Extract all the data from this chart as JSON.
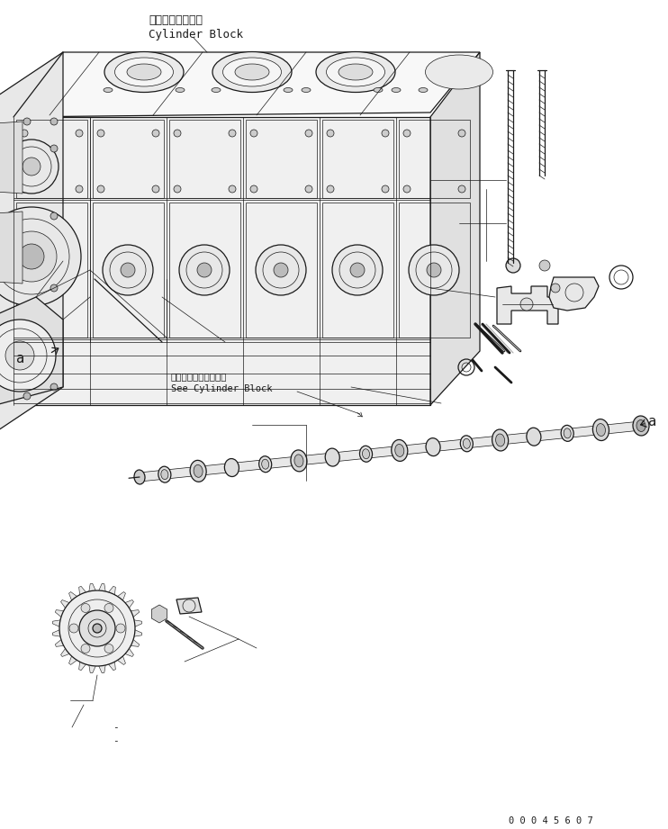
{
  "bg_color": "#ffffff",
  "line_color": "#1a1a1a",
  "fig_width": 7.42,
  "fig_height": 9.21,
  "dpi": 100,
  "title_jp": "シリンダブロック",
  "title_en": "Cylinder Block",
  "label_see_jp": "シリンダブロック参照",
  "label_see_en": "See Cylinder Block",
  "label_a": "a",
  "part_number": "0 0 0 4 5 6 0 7",
  "font_size_small": 7.5,
  "font_size_medium": 9,
  "font_size_label": 10
}
